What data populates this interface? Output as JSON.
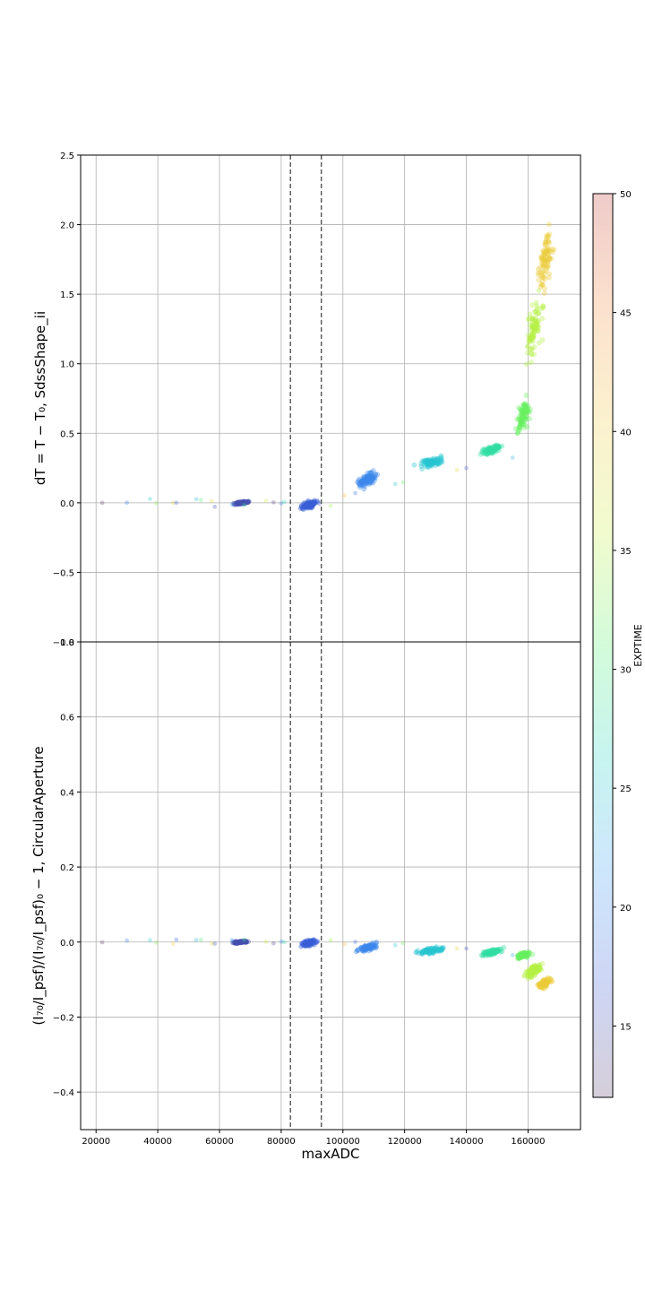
{
  "chart_data": [
    {
      "type": "scatter",
      "panel": "top",
      "ylabel": "dT = T − T₀, SdssShape_ii",
      "xlim": [
        15000,
        177000
      ],
      "ylim": [
        -1.0,
        2.5
      ],
      "yticks": [
        "2.5",
        "2.0",
        "1.5",
        "1.0",
        "0.5",
        "0.0",
        "−0.5",
        "−1.0"
      ],
      "grid": true,
      "vlines": [
        83000,
        93000
      ],
      "clusters": [
        {
          "exptime": 15,
          "x": [
            63000,
            71000
          ],
          "y": [
            -0.015,
            0.015
          ]
        },
        {
          "exptime": 17,
          "x": [
            85000,
            93000
          ],
          "y": [
            -0.06,
            0.03
          ]
        },
        {
          "exptime": 20,
          "x": [
            103000,
            113000
          ],
          "y": [
            0.08,
            0.25
          ]
        },
        {
          "exptime": 25,
          "x": [
            122000,
            135000
          ],
          "y": [
            0.24,
            0.34
          ]
        },
        {
          "exptime": 28,
          "x": [
            143000,
            153000
          ],
          "y": [
            0.33,
            0.43
          ]
        },
        {
          "exptime": 32,
          "x": [
            155000,
            162000
          ],
          "y": [
            0.45,
            0.8
          ]
        },
        {
          "exptime": 35,
          "x": [
            158000,
            166000
          ],
          "y": [
            0.9,
            1.6
          ]
        },
        {
          "exptime": 40,
          "x": [
            162000,
            169000
          ],
          "y": [
            1.45,
            2.05
          ]
        }
      ]
    },
    {
      "type": "scatter",
      "panel": "bottom",
      "ylabel": "(I₇₀/I_psf)/(I₇₀/I_psf)₀ − 1, CircularAperture",
      "xlabel": "maxADC",
      "xlim": [
        15000,
        177000
      ],
      "ylim": [
        -0.5,
        0.8
      ],
      "xticks": [
        "20000",
        "40000",
        "60000",
        "80000",
        "100000",
        "120000",
        "140000",
        "160000"
      ],
      "yticks": [
        "0.8",
        "0.6",
        "0.4",
        "0.2",
        "0.0",
        "−0.2",
        "−0.4"
      ],
      "grid": true,
      "vlines": [
        83000,
        93000
      ],
      "clusters": [
        {
          "exptime": 15,
          "x": [
            63000,
            71000
          ],
          "y": [
            -0.004,
            0.004
          ]
        },
        {
          "exptime": 17,
          "x": [
            85000,
            93000
          ],
          "y": [
            -0.015,
            0.01
          ]
        },
        {
          "exptime": 20,
          "x": [
            103000,
            113000
          ],
          "y": [
            -0.03,
            0.0
          ]
        },
        {
          "exptime": 25,
          "x": [
            122000,
            135000
          ],
          "y": [
            -0.035,
            -0.01
          ]
        },
        {
          "exptime": 28,
          "x": [
            143000,
            153000
          ],
          "y": [
            -0.04,
            -0.015
          ]
        },
        {
          "exptime": 32,
          "x": [
            155000,
            162000
          ],
          "y": [
            -0.05,
            -0.02
          ]
        },
        {
          "exptime": 35,
          "x": [
            158000,
            166000
          ],
          "y": [
            -0.1,
            -0.05
          ]
        },
        {
          "exptime": 40,
          "x": [
            162000,
            169000
          ],
          "y": [
            -0.13,
            -0.09
          ]
        }
      ]
    }
  ],
  "colorbar": {
    "label": "EXPTIME",
    "range": [
      12,
      50
    ],
    "ticks": [
      "50",
      "45",
      "40",
      "35",
      "30",
      "25",
      "20",
      "15"
    ],
    "colors": [
      "#5a3d6b",
      "#3a5bd6",
      "#3c9cf5",
      "#20d4c4",
      "#4ff06a",
      "#c8f03c",
      "#f0c83a",
      "#f5883a",
      "#c0302a"
    ]
  }
}
